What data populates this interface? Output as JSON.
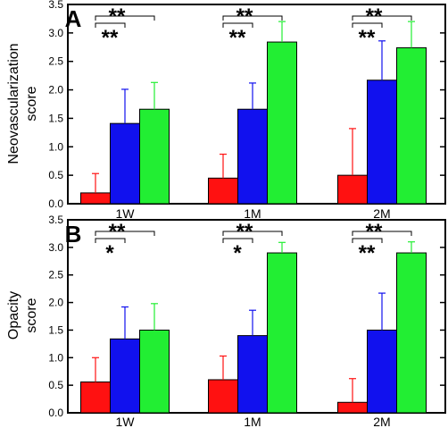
{
  "colors": {
    "red": "#ff1111",
    "blue": "#1111ee",
    "green": "#22ee33",
    "frame": "#000000"
  },
  "chart_data": [
    {
      "type": "bar",
      "panel_label": "A",
      "ylabel_lines": [
        "Neovascularization",
        "score"
      ],
      "categories": [
        "1W",
        "1M",
        "2M"
      ],
      "ylim": [
        0,
        3.5
      ],
      "yticks": [
        "0.0",
        "0.5",
        "1.0",
        "1.5",
        "2.0",
        "2.5",
        "3.0",
        "3.5"
      ],
      "series": [
        {
          "color": "#ff1111",
          "values": [
            0.19,
            0.45,
            0.5
          ],
          "errors": [
            0.34,
            0.42,
            0.82
          ]
        },
        {
          "color": "#1111ee",
          "values": [
            1.41,
            1.66,
            2.17
          ],
          "errors": [
            0.6,
            0.46,
            0.69
          ]
        },
        {
          "color": "#22ee33",
          "values": [
            1.66,
            2.84,
            2.74
          ],
          "errors": [
            0.47,
            0.36,
            0.46
          ]
        }
      ],
      "annotations": [
        {
          "group": 0,
          "level": "upper",
          "span": "red-green",
          "text": "**"
        },
        {
          "group": 0,
          "level": "lower",
          "span": "red-blue",
          "text": "**"
        },
        {
          "group": 1,
          "level": "upper",
          "span": "red-green",
          "text": "**"
        },
        {
          "group": 1,
          "level": "lower",
          "span": "red-blue",
          "text": "**"
        },
        {
          "group": 2,
          "level": "upper",
          "span": "red-green",
          "text": "**"
        },
        {
          "group": 2,
          "level": "lower",
          "span": "red-blue",
          "text": "**"
        }
      ]
    },
    {
      "type": "bar",
      "panel_label": "B",
      "ylabel_lines": [
        "Opacity",
        "score"
      ],
      "categories": [
        "1W",
        "1M",
        "2M"
      ],
      "ylim": [
        0,
        3.5
      ],
      "yticks": [
        "0.0",
        "0.5",
        "1.0",
        "1.5",
        "2.0",
        "2.5",
        "3.0",
        "3.5"
      ],
      "series": [
        {
          "color": "#ff1111",
          "values": [
            0.56,
            0.6,
            0.19
          ],
          "errors": [
            0.44,
            0.43,
            0.43
          ]
        },
        {
          "color": "#1111ee",
          "values": [
            1.34,
            1.4,
            1.5
          ],
          "errors": [
            0.58,
            0.46,
            0.67
          ]
        },
        {
          "color": "#22ee33",
          "values": [
            1.5,
            2.9,
            2.9
          ],
          "errors": [
            0.48,
            0.19,
            0.2
          ]
        }
      ],
      "annotations": [
        {
          "group": 0,
          "level": "upper",
          "span": "red-green",
          "text": "**"
        },
        {
          "group": 0,
          "level": "lower",
          "span": "red-blue",
          "text": "*"
        },
        {
          "group": 1,
          "level": "upper",
          "span": "red-green",
          "text": "**"
        },
        {
          "group": 1,
          "level": "lower",
          "span": "red-blue",
          "text": "*"
        },
        {
          "group": 2,
          "level": "upper",
          "span": "red-green",
          "text": "**"
        },
        {
          "group": 2,
          "level": "lower",
          "span": "red-blue",
          "text": "**"
        }
      ]
    }
  ]
}
